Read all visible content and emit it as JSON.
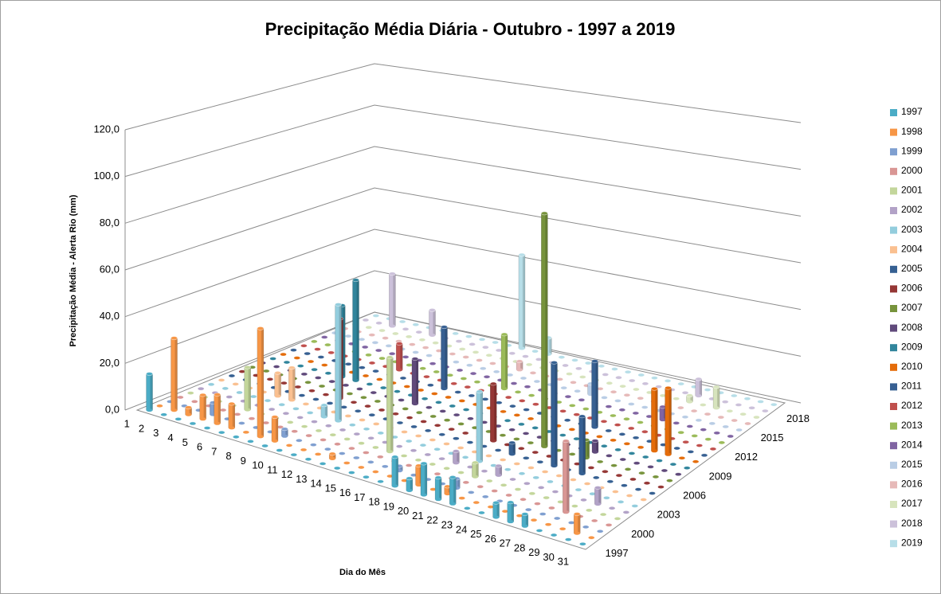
{
  "chart_data": {
    "type": "bar3d",
    "title": "Precipitação Média Diária - Outubro - 1997 a 2019",
    "x_label": "Dia do Mês",
    "y_label": "Precipitação Média - Alerta Rio (mm)",
    "categories": [
      "1",
      "2",
      "3",
      "4",
      "5",
      "6",
      "7",
      "8",
      "9",
      "10",
      "11",
      "12",
      "13",
      "14",
      "15",
      "16",
      "17",
      "18",
      "19",
      "20",
      "21",
      "22",
      "23",
      "24",
      "25",
      "26",
      "27",
      "28",
      "29",
      "30",
      "31"
    ],
    "ylim": [
      0,
      120
    ],
    "yticks": [
      {
        "value": 0,
        "label": "0,0"
      },
      {
        "value": 20,
        "label": "20,0"
      },
      {
        "value": 40,
        "label": "40,0"
      },
      {
        "value": 60,
        "label": "60,0"
      },
      {
        "value": 80,
        "label": "80,0"
      },
      {
        "value": 100,
        "label": "100,0"
      },
      {
        "value": 120,
        "label": "120,0"
      }
    ],
    "grid": true,
    "legend": "right",
    "series": [
      {
        "name": "1997",
        "color": "#4bacc6",
        "values": [
          15,
          0,
          0,
          0,
          0,
          0,
          0,
          0,
          0,
          0,
          0,
          0,
          0,
          0,
          0,
          0,
          0,
          12,
          5,
          13,
          9,
          11,
          0,
          0,
          6,
          8,
          5,
          0,
          0,
          0,
          0
        ]
      },
      {
        "name": "1998",
        "color": "#f79646",
        "values": [
          0,
          30,
          3,
          10,
          12,
          10,
          0,
          45,
          10,
          0,
          0,
          0,
          2,
          0,
          0,
          0,
          0,
          0,
          8,
          0,
          3,
          0,
          0,
          0,
          0,
          0,
          0,
          0,
          0,
          8,
          0
        ]
      },
      {
        "name": "1999",
        "color": "#7f9fd0",
        "values": [
          0,
          0,
          0,
          5,
          0,
          0,
          0,
          0,
          3,
          0,
          0,
          0,
          0,
          0,
          0,
          0,
          2,
          0,
          0,
          0,
          4,
          0,
          0,
          0,
          0,
          0,
          0,
          0,
          0,
          0,
          0
        ]
      },
      {
        "name": "2000",
        "color": "#d99694",
        "values": [
          0,
          0,
          0,
          0,
          0,
          0,
          0,
          0,
          0,
          0,
          0,
          0,
          0,
          0,
          0,
          0,
          0,
          0,
          0,
          0,
          0,
          0,
          0,
          0,
          0,
          0,
          0,
          30,
          0,
          0,
          0
        ]
      },
      {
        "name": "2001",
        "color": "#c3d69b",
        "values": [
          0,
          0,
          0,
          0,
          18,
          0,
          0,
          0,
          0,
          0,
          0,
          0,
          0,
          0,
          40,
          0,
          0,
          0,
          0,
          0,
          6,
          0,
          0,
          0,
          0,
          0,
          0,
          0,
          0,
          0,
          0
        ]
      },
      {
        "name": "2002",
        "color": "#b2a2c7",
        "values": [
          0,
          0,
          0,
          0,
          0,
          0,
          0,
          0,
          0,
          0,
          0,
          0,
          0,
          0,
          0,
          0,
          0,
          0,
          5,
          0,
          0,
          4,
          0,
          0,
          0,
          0,
          0,
          0,
          7,
          0,
          0
        ]
      },
      {
        "name": "2003",
        "color": "#93cddd",
        "values": [
          0,
          0,
          0,
          0,
          0,
          0,
          0,
          0,
          5,
          50,
          0,
          0,
          0,
          0,
          0,
          0,
          0,
          0,
          0,
          30,
          0,
          0,
          0,
          0,
          0,
          0,
          0,
          0,
          0,
          0,
          0
        ]
      },
      {
        "name": "2004",
        "color": "#fac090",
        "values": [
          0,
          0,
          0,
          0,
          10,
          14,
          0,
          0,
          0,
          0,
          0,
          0,
          0,
          0,
          0,
          0,
          0,
          0,
          0,
          0,
          0,
          0,
          0,
          0,
          0,
          0,
          0,
          0,
          0,
          0,
          0
        ]
      },
      {
        "name": "2005",
        "color": "#366092",
        "values": [
          0,
          0,
          0,
          0,
          0,
          0,
          0,
          0,
          0,
          0,
          0,
          0,
          0,
          0,
          0,
          0,
          0,
          0,
          0,
          0,
          5,
          0,
          0,
          45,
          0,
          25,
          0,
          0,
          0,
          0,
          0
        ]
      },
      {
        "name": "2006",
        "color": "#953735",
        "values": [
          0,
          0,
          0,
          0,
          0,
          0,
          0,
          35,
          0,
          0,
          0,
          0,
          0,
          0,
          0,
          0,
          0,
          0,
          25,
          0,
          0,
          0,
          0,
          0,
          0,
          0,
          0,
          0,
          0,
          0,
          0
        ]
      },
      {
        "name": "2007",
        "color": "#77933c",
        "values": [
          0,
          0,
          0,
          0,
          0,
          0,
          0,
          0,
          0,
          0,
          0,
          0,
          0,
          0,
          0,
          0,
          0,
          0,
          0,
          0,
          0,
          103,
          0,
          0,
          8,
          0,
          0,
          0,
          0,
          0,
          0
        ]
      },
      {
        "name": "2008",
        "color": "#604a7b",
        "values": [
          0,
          0,
          0,
          0,
          0,
          0,
          0,
          0,
          0,
          0,
          0,
          20,
          0,
          0,
          0,
          0,
          0,
          0,
          0,
          0,
          0,
          0,
          0,
          0,
          5,
          0,
          0,
          0,
          0,
          0,
          0
        ]
      },
      {
        "name": "2009",
        "color": "#31859c",
        "values": [
          0,
          0,
          0,
          0,
          0,
          32,
          45,
          0,
          0,
          0,
          0,
          0,
          0,
          0,
          0,
          0,
          0,
          0,
          0,
          0,
          0,
          0,
          0,
          0,
          0,
          0,
          0,
          0,
          0,
          0,
          0
        ]
      },
      {
        "name": "2010",
        "color": "#e46c0a",
        "values": [
          0,
          0,
          0,
          0,
          0,
          0,
          0,
          0,
          0,
          0,
          0,
          0,
          0,
          0,
          0,
          0,
          0,
          0,
          0,
          0,
          0,
          0,
          0,
          0,
          0,
          0,
          0,
          28,
          30,
          0,
          0
        ]
      },
      {
        "name": "2011",
        "color": "#376092",
        "values": [
          0,
          0,
          0,
          0,
          0,
          0,
          0,
          0,
          0,
          0,
          0,
          28,
          0,
          0,
          0,
          0,
          0,
          0,
          0,
          0,
          0,
          0,
          30,
          0,
          0,
          0,
          0,
          0,
          0,
          0,
          0
        ]
      },
      {
        "name": "2012",
        "color": "#c0504d",
        "values": [
          0,
          0,
          0,
          0,
          0,
          0,
          0,
          12,
          0,
          0,
          0,
          0,
          0,
          0,
          0,
          0,
          0,
          0,
          0,
          0,
          0,
          0,
          0,
          0,
          0,
          0,
          0,
          0,
          0,
          0,
          0
        ]
      },
      {
        "name": "2013",
        "color": "#9bbb59",
        "values": [
          0,
          0,
          0,
          0,
          0,
          0,
          0,
          0,
          0,
          0,
          0,
          0,
          0,
          0,
          25,
          0,
          0,
          0,
          0,
          0,
          0,
          0,
          0,
          0,
          0,
          0,
          0,
          0,
          0,
          0,
          0
        ]
      },
      {
        "name": "2014",
        "color": "#8064a2",
        "values": [
          0,
          0,
          0,
          0,
          0,
          0,
          0,
          0,
          0,
          0,
          0,
          0,
          0,
          0,
          0,
          0,
          0,
          0,
          0,
          0,
          0,
          0,
          0,
          0,
          0,
          6,
          0,
          0,
          0,
          0,
          0
        ]
      },
      {
        "name": "2015",
        "color": "#b9cde5",
        "values": [
          0,
          0,
          0,
          0,
          0,
          0,
          0,
          0,
          0,
          0,
          0,
          0,
          0,
          0,
          0,
          0,
          0,
          0,
          0,
          5,
          0,
          0,
          0,
          0,
          0,
          0,
          0,
          0,
          0,
          0,
          0
        ]
      },
      {
        "name": "2016",
        "color": "#e6b9b8",
        "values": [
          0,
          0,
          0,
          0,
          0,
          0,
          0,
          0,
          0,
          0,
          0,
          0,
          0,
          4,
          0,
          0,
          0,
          0,
          0,
          0,
          0,
          0,
          0,
          0,
          0,
          0,
          0,
          0,
          0,
          0,
          0
        ]
      },
      {
        "name": "2017",
        "color": "#d7e4bd",
        "values": [
          0,
          0,
          0,
          0,
          0,
          0,
          0,
          0,
          0,
          0,
          0,
          0,
          0,
          0,
          0,
          0,
          0,
          0,
          0,
          0,
          0,
          0,
          0,
          0,
          0,
          3,
          0,
          10,
          0,
          0,
          0
        ]
      },
      {
        "name": "2018",
        "color": "#ccc1da",
        "values": [
          0,
          0,
          25,
          0,
          0,
          12,
          0,
          0,
          0,
          0,
          0,
          0,
          0,
          0,
          0,
          0,
          0,
          0,
          0,
          0,
          0,
          0,
          0,
          0,
          0,
          8,
          0,
          0,
          0,
          0,
          0
        ]
      },
      {
        "name": "2019",
        "color": "#b7dee8",
        "values": [
          0,
          0,
          0,
          0,
          0,
          0,
          0,
          0,
          0,
          0,
          0,
          45,
          0,
          8,
          0,
          0,
          0,
          0,
          0,
          0,
          0,
          0,
          0,
          0,
          0,
          0,
          0,
          0,
          0,
          0,
          0
        ]
      }
    ]
  }
}
